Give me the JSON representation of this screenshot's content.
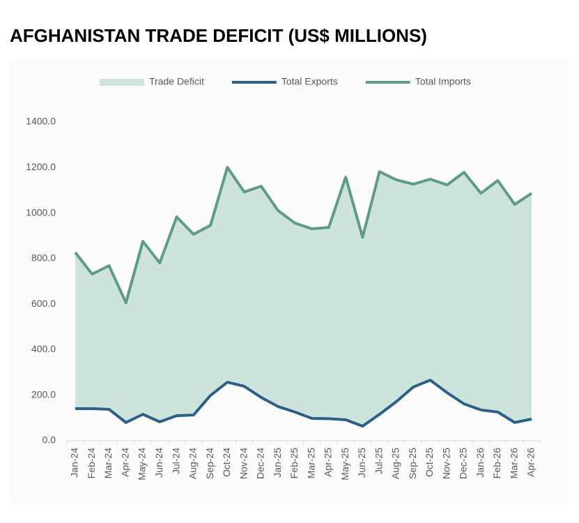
{
  "chart_data": {
    "type": "line",
    "title": "AFGHANISTAN TRADE DEFICIT (US$ MILLIONS)",
    "categories": [
      "Jan-24",
      "Feb-24",
      "Mar-24",
      "Apr-24",
      "May-24",
      "Jun-24",
      "Jul-24",
      "Aug-24",
      "Sep-24",
      "Oct-24",
      "Nov-24",
      "Dec-24",
      "Jan-25",
      "Feb-25",
      "Mar-25",
      "Apr-25",
      "May-25",
      "Jun-25",
      "Jul-25",
      "Aug-25",
      "Sep-25",
      "Oct-25",
      "Nov-25",
      "Dec-25",
      "Jan-26",
      "Feb-26",
      "Mar-26",
      "Apr-26"
    ],
    "series": [
      {
        "name": "Trade Deficit",
        "color": "#cde4dc",
        "kind": "area",
        "stacked_on": "Total Exports",
        "values": [
          686,
          591,
          631,
          526,
          760,
          698,
          873,
          794,
          747,
          944,
          854,
          928,
          861,
          830,
          833,
          840,
          1066,
          830,
          1066,
          974,
          891,
          883,
          913,
          1017,
          952,
          1017,
          958,
          992
        ]
      },
      {
        "name": "Total Exports",
        "color": "#2e5f86",
        "values": [
          141,
          141,
          138,
          80,
          116,
          83,
          110,
          113,
          199,
          257,
          239,
          190,
          150,
          126,
          98,
          97,
          92,
          64,
          116,
          172,
          236,
          266,
          211,
          162,
          135,
          126,
          80,
          95
        ]
      },
      {
        "name": "Total Imports",
        "color": "#5e9c84",
        "values": [
          827,
          732,
          769,
          606,
          876,
          781,
          983,
          907,
          946,
          1201,
          1093,
          1118,
          1011,
          956,
          931,
          937,
          1158,
          894,
          1182,
          1146,
          1127,
          1149,
          1124,
          1179,
          1087,
          1143,
          1038,
          1087
        ]
      }
    ],
    "ylim": [
      0,
      1400
    ],
    "yticks": [
      {
        "value": 0,
        "label": "0.0"
      },
      {
        "value": 200,
        "label": "200.0"
      },
      {
        "value": 400,
        "label": "400.0"
      },
      {
        "value": 600,
        "label": "600.0"
      },
      {
        "value": 800,
        "label": "800.0"
      },
      {
        "value": 1000,
        "label": "1000.0"
      },
      {
        "value": 1200,
        "label": "1200.0"
      },
      {
        "value": 1400,
        "label": "1400.0"
      }
    ],
    "grid": false,
    "legend": "top"
  }
}
